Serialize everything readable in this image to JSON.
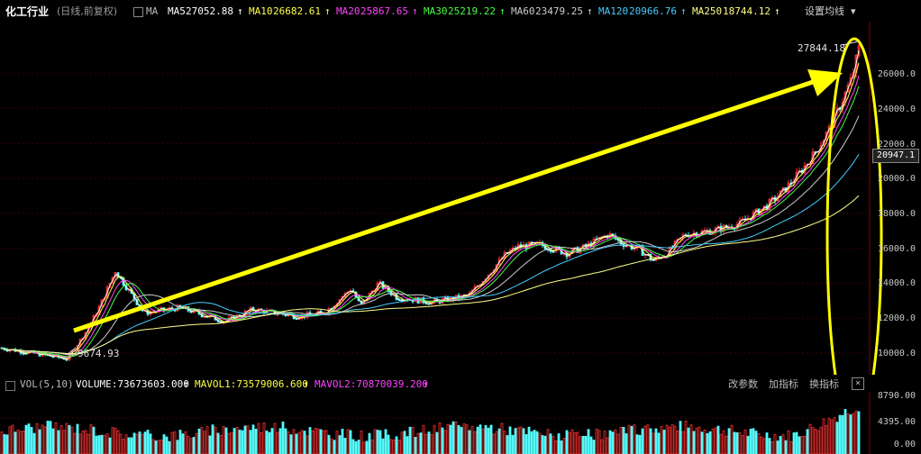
{
  "header": {
    "title": "化工行业",
    "period": "(日线,前复权)",
    "ma_label": "MA",
    "ma": [
      {
        "name": "MA5",
        "value": "27052.88",
        "color": "#ffffff"
      },
      {
        "name": "MA10",
        "value": "26682.61",
        "color": "#ffff44"
      },
      {
        "name": "MA20",
        "value": "25867.65",
        "color": "#ff44ff"
      },
      {
        "name": "MA30",
        "value": "25219.22",
        "color": "#44ff44"
      },
      {
        "name": "MA60",
        "value": "23479.25",
        "color": "#cccccc"
      },
      {
        "name": "MA120",
        "value": "20966.76",
        "color": "#44ccff"
      },
      {
        "name": "MA250",
        "value": "18744.12",
        "color": "#ffff88"
      }
    ],
    "settings_label": "设置均线",
    "settings_arrow": "▾"
  },
  "annotations": {
    "high_label": "27844.18",
    "low_label": "9674.93",
    "current_price": "20947.1"
  },
  "y_axis": {
    "labels": [
      "26000.0",
      "24000.0",
      "22000.0",
      "20000.0",
      "18000.0",
      "16000.0",
      "14000.0",
      "12000.0",
      "10000.0"
    ]
  },
  "volume_panel": {
    "indicator": "VOL(5,10)",
    "volume_label": "VOLUME:73673603.000",
    "mavol1_label": "MAVOL1:73579006.600",
    "mavol2_label": "MAVOL2:70870039.200",
    "buttons": {
      "params": "改参数",
      "add": "加指标",
      "switch": "换指标"
    },
    "close": "×",
    "y_labels": [
      "8790.00",
      "4395.00",
      "0.00"
    ]
  },
  "colors": {
    "up": "#ff3232",
    "down": "#54fcfc",
    "highlight": "#ffff00",
    "grid": "#3c0000"
  },
  "chart_data": [
    {
      "type": "line",
      "title": "化工行业",
      "ylim": [
        9000,
        28500
      ],
      "series": [
        {
          "name": "MA5",
          "values": []
        },
        {
          "name": "MA250",
          "values": []
        }
      ],
      "close_trend": [
        [
          0,
          10300
        ],
        [
          30,
          10050
        ],
        [
          60,
          9800
        ],
        [
          75,
          9675
        ],
        [
          95,
          11200
        ],
        [
          110,
          12600
        ],
        [
          128,
          14700
        ],
        [
          140,
          13800
        ],
        [
          160,
          12300
        ],
        [
          200,
          12600
        ],
        [
          250,
          11800
        ],
        [
          280,
          12500
        ],
        [
          330,
          12100
        ],
        [
          360,
          12300
        ],
        [
          390,
          13700
        ],
        [
          400,
          12700
        ],
        [
          420,
          14000
        ],
        [
          440,
          13200
        ],
        [
          480,
          12900
        ],
        [
          520,
          13300
        ],
        [
          545,
          14700
        ],
        [
          560,
          15600
        ],
        [
          575,
          16100
        ],
        [
          600,
          16200
        ],
        [
          630,
          15700
        ],
        [
          650,
          16100
        ],
        [
          675,
          16800
        ],
        [
          690,
          16300
        ],
        [
          710,
          15900
        ],
        [
          725,
          15300
        ],
        [
          740,
          15700
        ],
        [
          760,
          16800
        ],
        [
          790,
          17000
        ],
        [
          820,
          17400
        ],
        [
          850,
          18400
        ],
        [
          870,
          19300
        ],
        [
          890,
          20500
        ],
        [
          905,
          21500
        ],
        [
          920,
          22800
        ],
        [
          935,
          24500
        ],
        [
          945,
          25700
        ],
        [
          955,
          27844
        ]
      ],
      "high": 27844.18,
      "low": 9674.93
    },
    {
      "type": "bar",
      "title": "VOL(5,10)",
      "ylim": [
        0,
        8790
      ],
      "note": "volume bars colored by up/down day"
    }
  ]
}
